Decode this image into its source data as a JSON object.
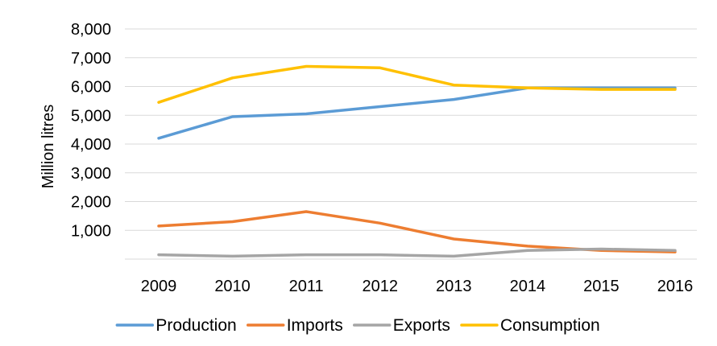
{
  "chart_data": {
    "type": "line",
    "title": "",
    "xlabel": "",
    "ylabel": "Million litres",
    "categories": [
      "2009",
      "2010",
      "2011",
      "2012",
      "2013",
      "2014",
      "2015",
      "2016"
    ],
    "ylim": [
      0,
      8000
    ],
    "yticks": [
      1000,
      2000,
      3000,
      4000,
      5000,
      6000,
      7000,
      8000
    ],
    "ytick_labels": [
      "1,000",
      "2,000",
      "3,000",
      "4,000",
      "5,000",
      "6,000",
      "7,000",
      "8,000"
    ],
    "grid": true,
    "legend_position": "bottom",
    "series": [
      {
        "name": "Production",
        "color": "#5b9bd5",
        "values": [
          4200,
          4950,
          5050,
          5300,
          5550,
          5950,
          5950,
          5950
        ]
      },
      {
        "name": "Imports",
        "color": "#ed7d31",
        "values": [
          1150,
          1300,
          1650,
          1250,
          700,
          450,
          300,
          250
        ]
      },
      {
        "name": "Exports",
        "color": "#a5a5a5",
        "values": [
          150,
          100,
          150,
          150,
          100,
          300,
          350,
          300
        ]
      },
      {
        "name": "Consumption",
        "color": "#ffc000",
        "values": [
          5450,
          6300,
          6700,
          6650,
          6050,
          5950,
          5900,
          5900
        ]
      }
    ]
  }
}
